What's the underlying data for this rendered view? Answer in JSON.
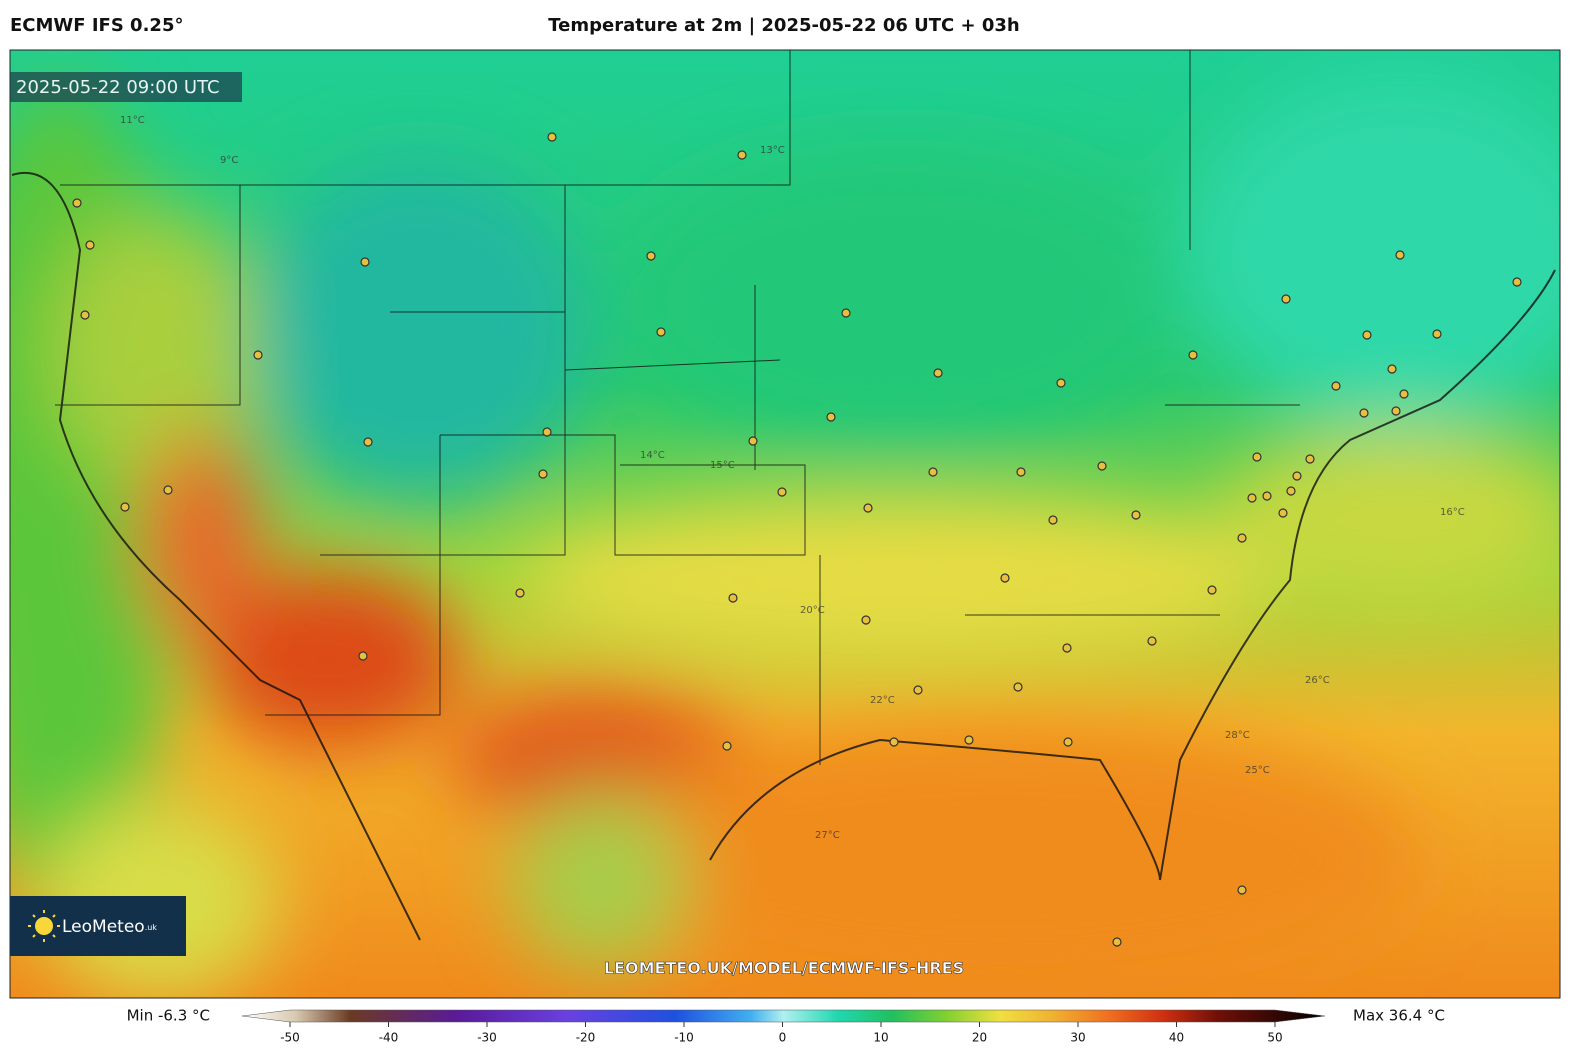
{
  "header": {
    "model": "ECMWF IFS 0.25°",
    "title": "Temperature at 2m | 2025-05-22 06 UTC + 03h"
  },
  "map": {
    "valid_time": "2025-05-22 09:00 UTC",
    "logo": {
      "name": "LeoMeteo",
      "suffix": ".uk"
    },
    "url": "LEOMETEO.UK/MODEL/ECMWF-IFS-HRES",
    "contour_labels": [
      "9°C",
      "11°C",
      "13°C",
      "14°C",
      "15°C",
      "16°C",
      "20°C",
      "22°C",
      "25°C",
      "26°C",
      "27°C",
      "28°C"
    ]
  },
  "colorbar": {
    "min_label": "Min -6.3 °C",
    "max_label": "Max 36.4 °C",
    "range": [
      -50,
      50
    ],
    "ticks": [
      -50,
      -40,
      -30,
      -20,
      -10,
      0,
      10,
      20,
      30,
      40,
      50
    ]
  }
}
